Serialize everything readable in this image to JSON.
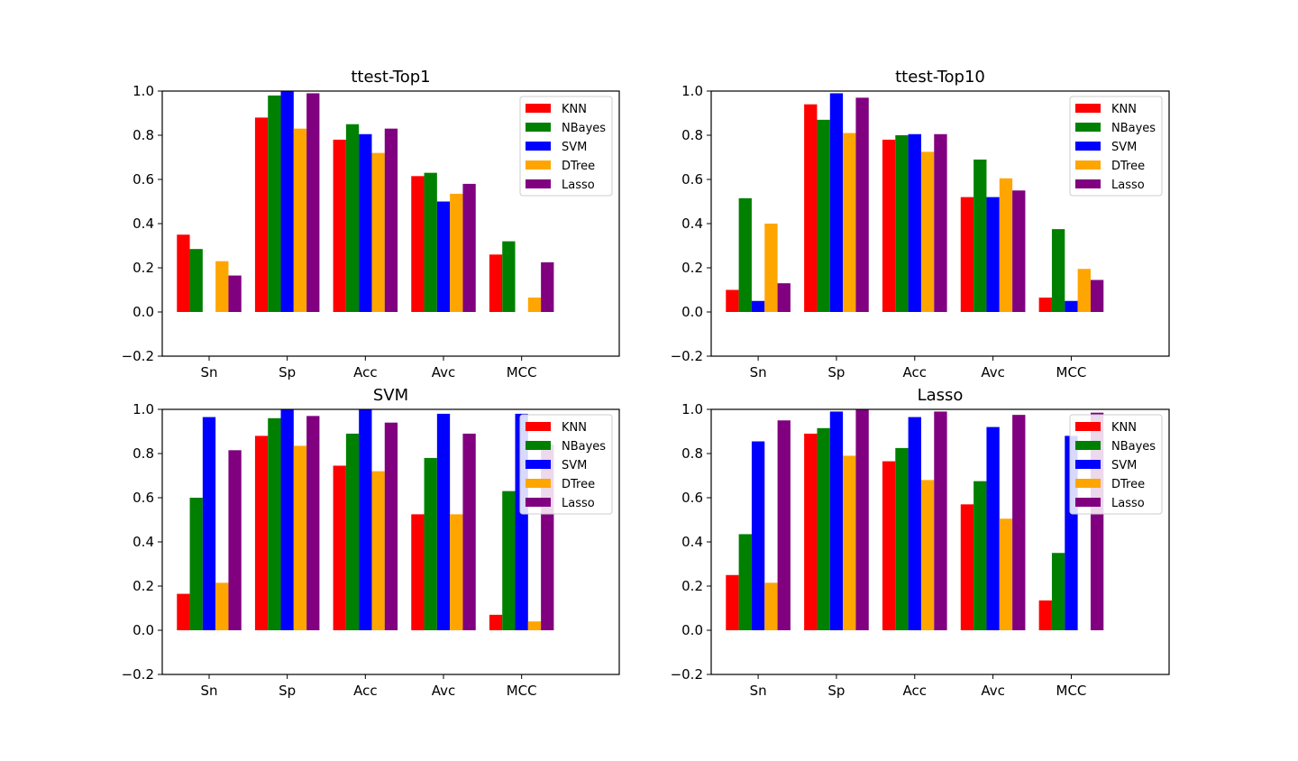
{
  "colors": {
    "KNN": "#ff0000",
    "NBayes": "#008000",
    "SVM": "#0000ff",
    "DTree": "#ffa500",
    "Lasso": "#800080"
  },
  "chart_data": [
    {
      "type": "bar",
      "title": "ttest-Top1",
      "xlabel": "",
      "ylabel": "",
      "categories": [
        "Sn",
        "Sp",
        "Acc",
        "Avc",
        "MCC"
      ],
      "ylim": [
        -0.2,
        1.0
      ],
      "yticks": [
        -0.2,
        0.0,
        0.2,
        0.4,
        0.6,
        0.8,
        1.0
      ],
      "legend": "top-right",
      "grid": false,
      "series": [
        {
          "name": "KNN",
          "values": [
            0.35,
            0.88,
            0.78,
            0.615,
            0.26
          ]
        },
        {
          "name": "NBayes",
          "values": [
            0.285,
            0.98,
            0.85,
            0.63,
            0.32
          ]
        },
        {
          "name": "SVM",
          "values": [
            0.0,
            1.0,
            0.805,
            0.5,
            0.0
          ]
        },
        {
          "name": "DTree",
          "values": [
            0.23,
            0.83,
            0.72,
            0.535,
            0.065
          ]
        },
        {
          "name": "Lasso",
          "values": [
            0.165,
            0.99,
            0.83,
            0.58,
            0.225
          ]
        }
      ]
    },
    {
      "type": "bar",
      "title": "ttest-Top10",
      "xlabel": "",
      "ylabel": "",
      "categories": [
        "Sn",
        "Sp",
        "Acc",
        "Avc",
        "MCC"
      ],
      "ylim": [
        -0.2,
        1.0
      ],
      "yticks": [
        -0.2,
        0.0,
        0.2,
        0.4,
        0.6,
        0.8,
        1.0
      ],
      "legend": "top-right",
      "grid": false,
      "series": [
        {
          "name": "KNN",
          "values": [
            0.1,
            0.94,
            0.78,
            0.52,
            0.065
          ]
        },
        {
          "name": "NBayes",
          "values": [
            0.515,
            0.87,
            0.8,
            0.69,
            0.375
          ]
        },
        {
          "name": "SVM",
          "values": [
            0.05,
            0.99,
            0.805,
            0.52,
            0.05
          ]
        },
        {
          "name": "DTree",
          "values": [
            0.4,
            0.81,
            0.725,
            0.605,
            0.195
          ]
        },
        {
          "name": "Lasso",
          "values": [
            0.13,
            0.97,
            0.805,
            0.55,
            0.145
          ]
        }
      ]
    },
    {
      "type": "bar",
      "title": "SVM",
      "xlabel": "",
      "ylabel": "",
      "categories": [
        "Sn",
        "Sp",
        "Acc",
        "Avc",
        "MCC"
      ],
      "ylim": [
        -0.2,
        1.0
      ],
      "yticks": [
        -0.2,
        0.0,
        0.2,
        0.4,
        0.6,
        0.8,
        1.0
      ],
      "legend": "top-right",
      "grid": false,
      "series": [
        {
          "name": "KNN",
          "values": [
            0.165,
            0.88,
            0.745,
            0.525,
            0.07
          ]
        },
        {
          "name": "NBayes",
          "values": [
            0.6,
            0.96,
            0.89,
            0.78,
            0.63
          ]
        },
        {
          "name": "SVM",
          "values": [
            0.965,
            1.0,
            1.0,
            0.98,
            0.98
          ]
        },
        {
          "name": "DTree",
          "values": [
            0.215,
            0.835,
            0.72,
            0.525,
            0.04
          ]
        },
        {
          "name": "Lasso",
          "values": [
            0.815,
            0.97,
            0.94,
            0.89,
            0.84
          ]
        }
      ]
    },
    {
      "type": "bar",
      "title": "Lasso",
      "xlabel": "",
      "ylabel": "",
      "categories": [
        "Sn",
        "Sp",
        "Acc",
        "Avc",
        "MCC"
      ],
      "ylim": [
        -0.2,
        1.0
      ],
      "yticks": [
        -0.2,
        0.0,
        0.2,
        0.4,
        0.6,
        0.8,
        1.0
      ],
      "legend": "top-right",
      "grid": false,
      "series": [
        {
          "name": "KNN",
          "values": [
            0.25,
            0.89,
            0.765,
            0.57,
            0.135
          ]
        },
        {
          "name": "NBayes",
          "values": [
            0.435,
            0.915,
            0.825,
            0.675,
            0.35
          ]
        },
        {
          "name": "SVM",
          "values": [
            0.855,
            0.99,
            0.965,
            0.92,
            0.88
          ]
        },
        {
          "name": "DTree",
          "values": [
            0.215,
            0.79,
            0.68,
            0.505,
            0.0
          ]
        },
        {
          "name": "Lasso",
          "values": [
            0.95,
            1.0,
            0.99,
            0.975,
            0.985
          ]
        }
      ]
    }
  ]
}
